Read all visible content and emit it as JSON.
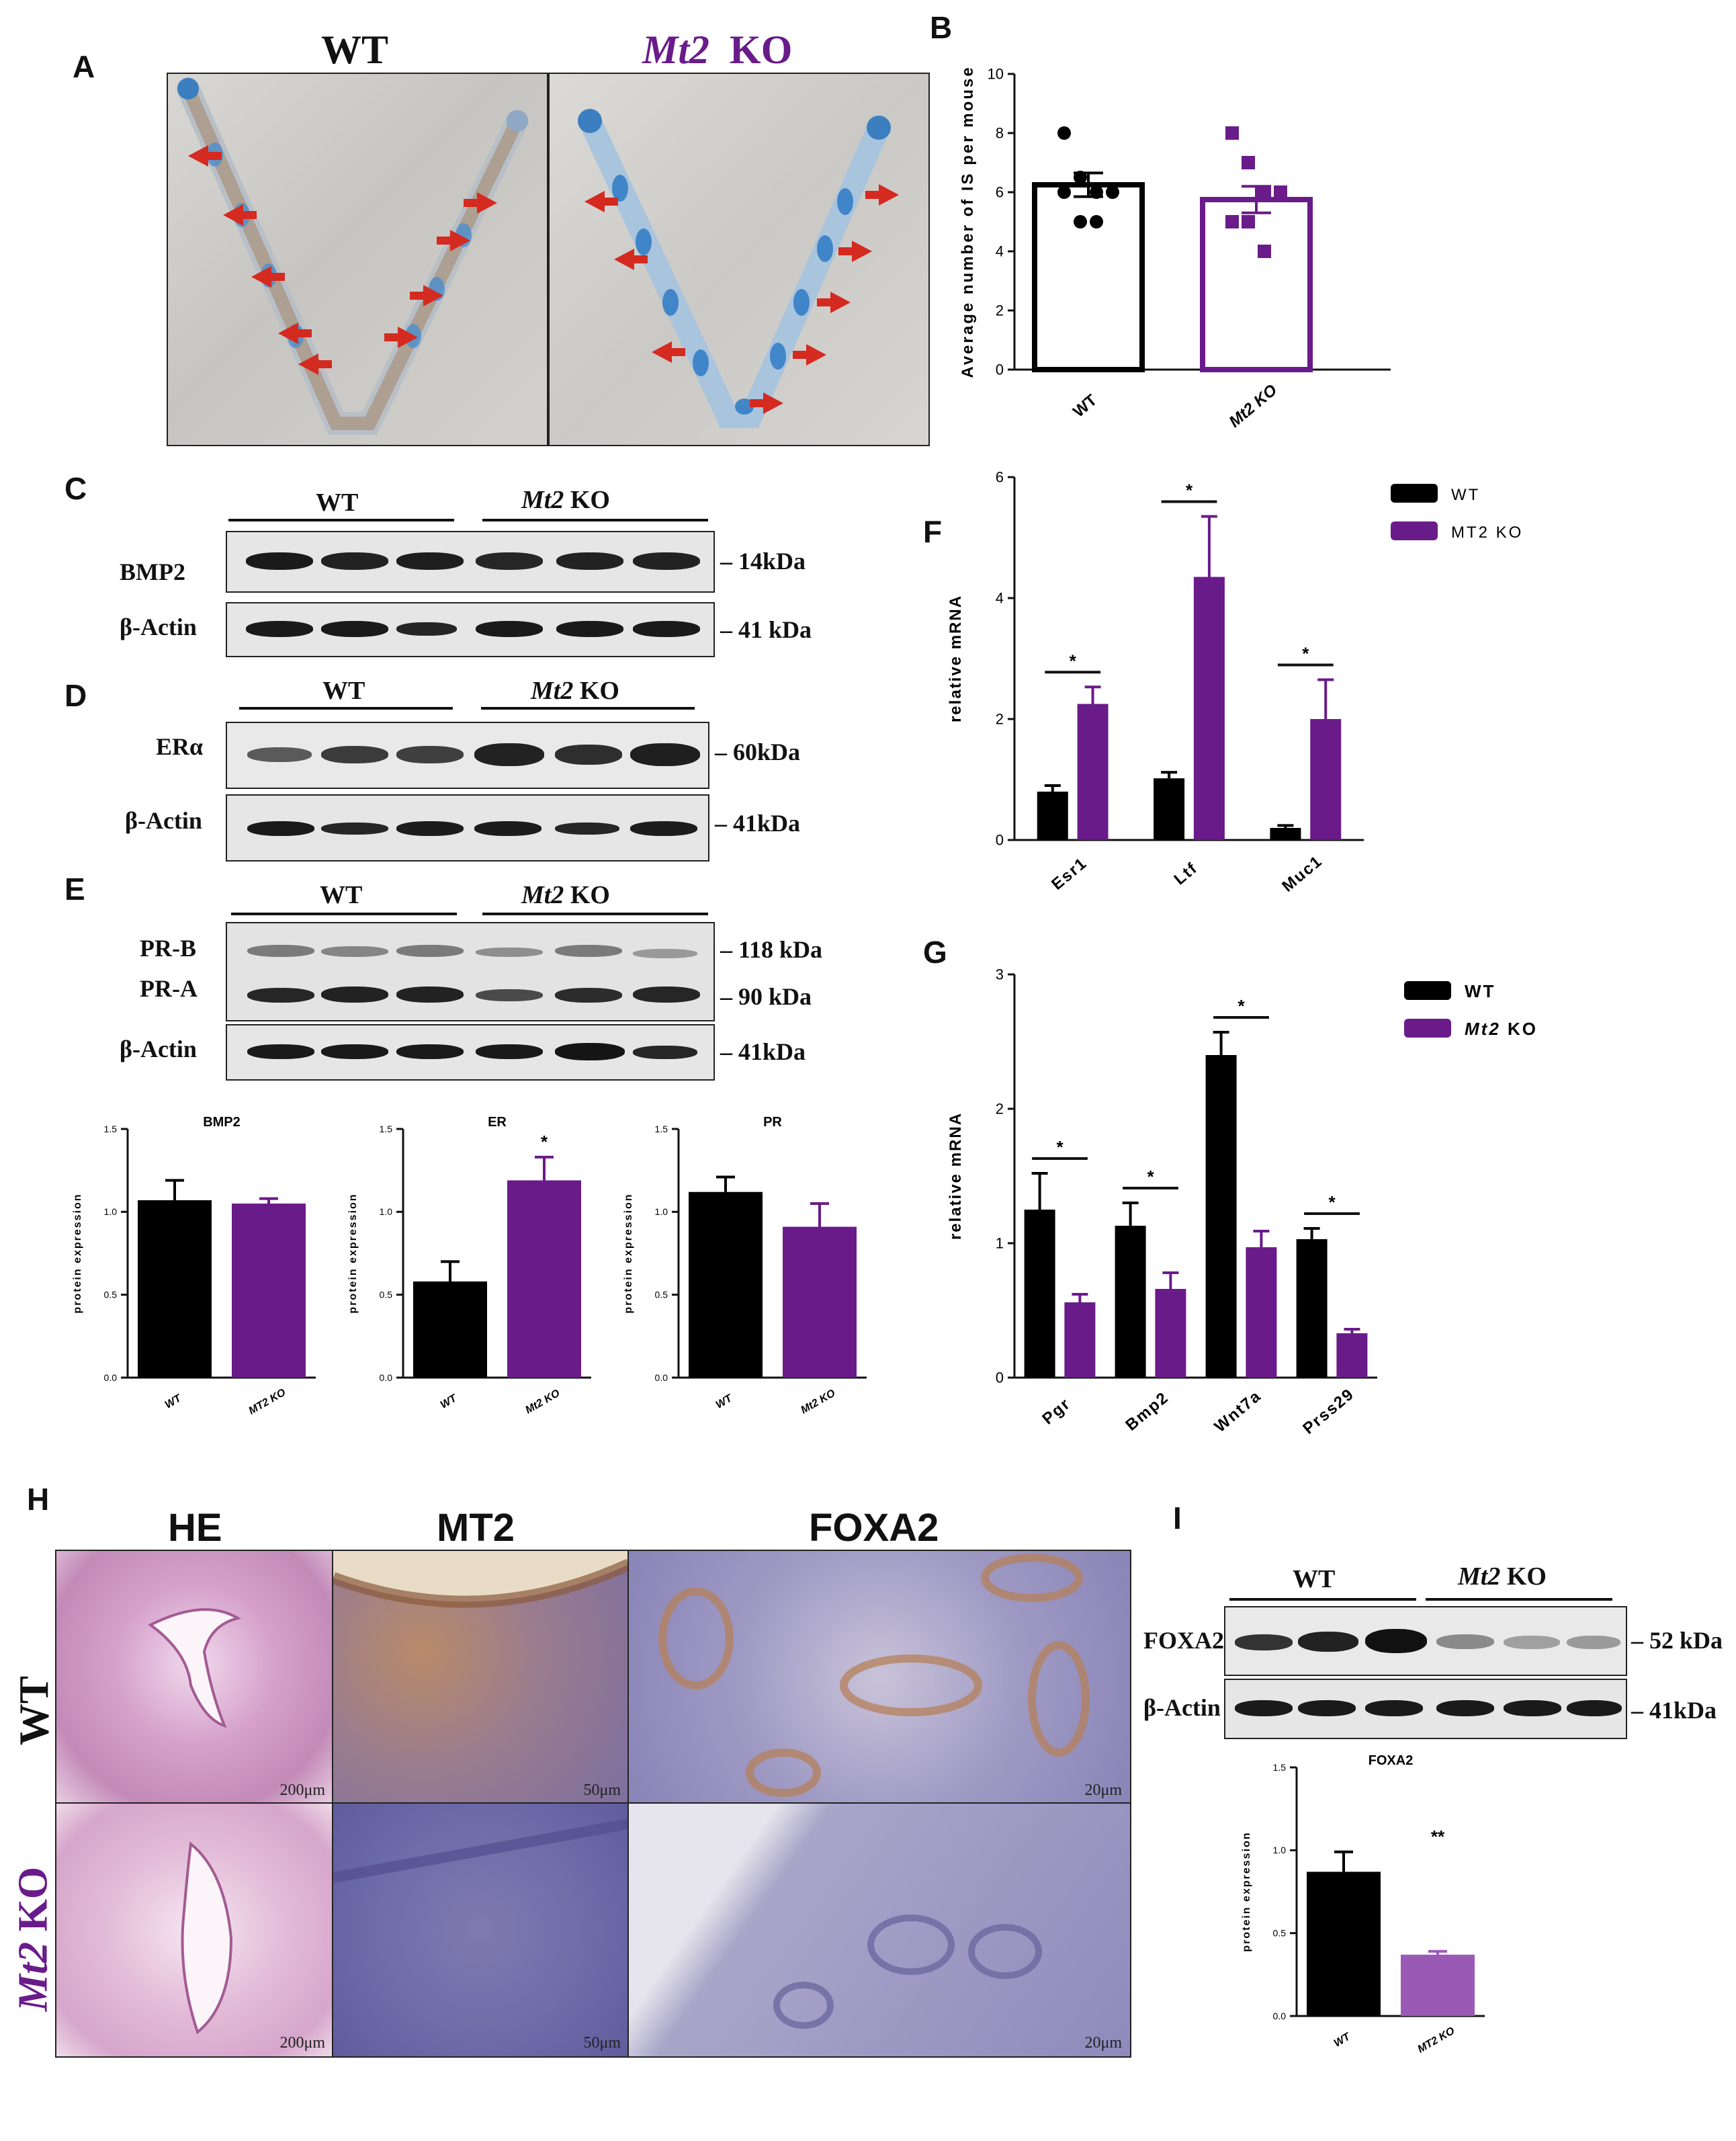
{
  "panels": {
    "a": "A",
    "b": "B",
    "c": "C",
    "d": "D",
    "e": "E",
    "f": "F",
    "g": "G",
    "h": "H",
    "i": "I"
  },
  "panel_a": {
    "wt_title": "WT",
    "ko_title_italic": "Mt2",
    "ko_title_rest": "KO"
  },
  "blots": {
    "group_wt": "WT",
    "group_ko_italic": "Mt2",
    "group_ko_rest": "KO",
    "c": {
      "bmp2": "BMP2",
      "actin": "β-Actin",
      "kda_bmp2": "14kDa",
      "kda_actin": "41 kDa"
    },
    "d": {
      "era": "ERα",
      "actin": "β-Actin",
      "kda_era": "60kDa",
      "kda_actin": "41kDa"
    },
    "e": {
      "prb": "PR-B",
      "pra": "PR-A",
      "actin": "β-Actin",
      "kda_prb": "118 kDa",
      "kda_pra": "90 kDa",
      "kda_actin": "41kDa"
    },
    "i": {
      "foxa2": "FOXA2",
      "actin": "β-Actin",
      "kda_foxa2": "52 kDa",
      "kda_actin": "41kDa"
    }
  },
  "panel_h": {
    "col_he": "HE",
    "col_mt2": "MT2",
    "col_foxa2": "FOXA2",
    "row_wt": "WT",
    "row_ko_italic": "Mt2",
    "row_ko_rest": "KO",
    "scales": [
      "200μm",
      "50μm",
      "20μm",
      "200μm",
      "50μm",
      "20μm"
    ]
  },
  "colors": {
    "wt": "#000000",
    "ko": "#6a1b8a",
    "ko_light": "#9b59b6",
    "arrow": "#d42a20",
    "he_stain": "#c98bb8",
    "ihc_blue": "#6d6aa8"
  },
  "chart_data": [
    {
      "id": "B",
      "type": "bar",
      "categories": [
        "WT",
        "Mt2 KO"
      ],
      "values": [
        6.25,
        5.75
      ],
      "errors": [
        0.4,
        0.45
      ],
      "points": [
        [
          8,
          6.5,
          6,
          6,
          6,
          5,
          5
        ],
        [
          8,
          7,
          6,
          6,
          5,
          5,
          4
        ]
      ],
      "ylabel": "Average number of IS per mouse",
      "ylim": [
        0,
        10
      ],
      "yticks": [
        "0",
        "2",
        "4",
        "6",
        "8",
        "10"
      ]
    },
    {
      "id": "F",
      "type": "bar",
      "categories": [
        "Esr1",
        "Ltf",
        "Muc1"
      ],
      "series": [
        {
          "name": "WT",
          "values": [
            0.8,
            1.02,
            0.2
          ],
          "errors": [
            0.1,
            0.1,
            0.04
          ]
        },
        {
          "name": "MT2 KO",
          "values": [
            2.25,
            4.35,
            2.0
          ],
          "errors": [
            0.28,
            1.0,
            0.65
          ]
        }
      ],
      "significance": [
        "*",
        "*",
        "*"
      ],
      "ylabel": "relative mRNA",
      "ylim": [
        0,
        6
      ],
      "yticks": [
        "0",
        "2",
        "4",
        "6"
      ],
      "legend": "top-right"
    },
    {
      "id": "G",
      "type": "bar",
      "categories": [
        "Pgr",
        "Bmp2",
        "Wnt7a",
        "Prss29"
      ],
      "series": [
        {
          "name": "WT",
          "values": [
            1.25,
            1.13,
            2.4,
            1.03
          ],
          "errors": [
            0.27,
            0.17,
            0.17,
            0.08
          ]
        },
        {
          "name": "Mt2 KO",
          "values": [
            0.56,
            0.66,
            0.97,
            0.33
          ],
          "errors": [
            0.06,
            0.12,
            0.12,
            0.03
          ]
        }
      ],
      "significance": [
        "*",
        "*",
        "*",
        "*"
      ],
      "legend_wt": "WT",
      "legend_ko_italic": "Mt2",
      "legend_ko_rest": "KO",
      "ylabel": "relative mRNA",
      "ylim": [
        0,
        3
      ],
      "yticks": [
        "0",
        "1",
        "2",
        "3"
      ],
      "legend": "top-right"
    },
    {
      "id": "BMP2",
      "type": "bar",
      "title": "BMP2",
      "categories": [
        "WT",
        "MT2 KO"
      ],
      "values": [
        1.07,
        1.05
      ],
      "errors": [
        0.12,
        0.03
      ],
      "ylabel": "protein expression",
      "ylim": [
        0,
        1.5
      ],
      "yticks": [
        "0.0",
        "0.5",
        "1.0",
        "1.5"
      ]
    },
    {
      "id": "ER",
      "type": "bar",
      "title": "ER",
      "categories": [
        "WT",
        "Mt2 KO"
      ],
      "values": [
        0.58,
        1.19
      ],
      "errors": [
        0.12,
        0.14
      ],
      "significance": "*",
      "ylabel": "protein expression",
      "ylim": [
        0,
        1.5
      ],
      "yticks": [
        "0.0",
        "0.5",
        "1.0",
        "1.5"
      ]
    },
    {
      "id": "PR",
      "type": "bar",
      "title": "PR",
      "categories": [
        "WT",
        "Mt2 KO"
      ],
      "values": [
        1.12,
        0.91
      ],
      "errors": [
        0.09,
        0.14
      ],
      "ylabel": "protein expression",
      "ylim": [
        0,
        1.5
      ],
      "yticks": [
        "0.0",
        "0.5",
        "1.0",
        "1.5"
      ]
    },
    {
      "id": "FOXA2",
      "type": "bar",
      "title": "FOXA2",
      "categories": [
        "WT",
        "MT2 KO"
      ],
      "values": [
        0.87,
        0.37
      ],
      "errors": [
        0.12,
        0.02
      ],
      "significance": "**",
      "ylabel": "protein expression",
      "ylim": [
        0,
        1.5
      ],
      "yticks": [
        "0.0",
        "0.5",
        "1.0",
        "1.5"
      ]
    }
  ]
}
